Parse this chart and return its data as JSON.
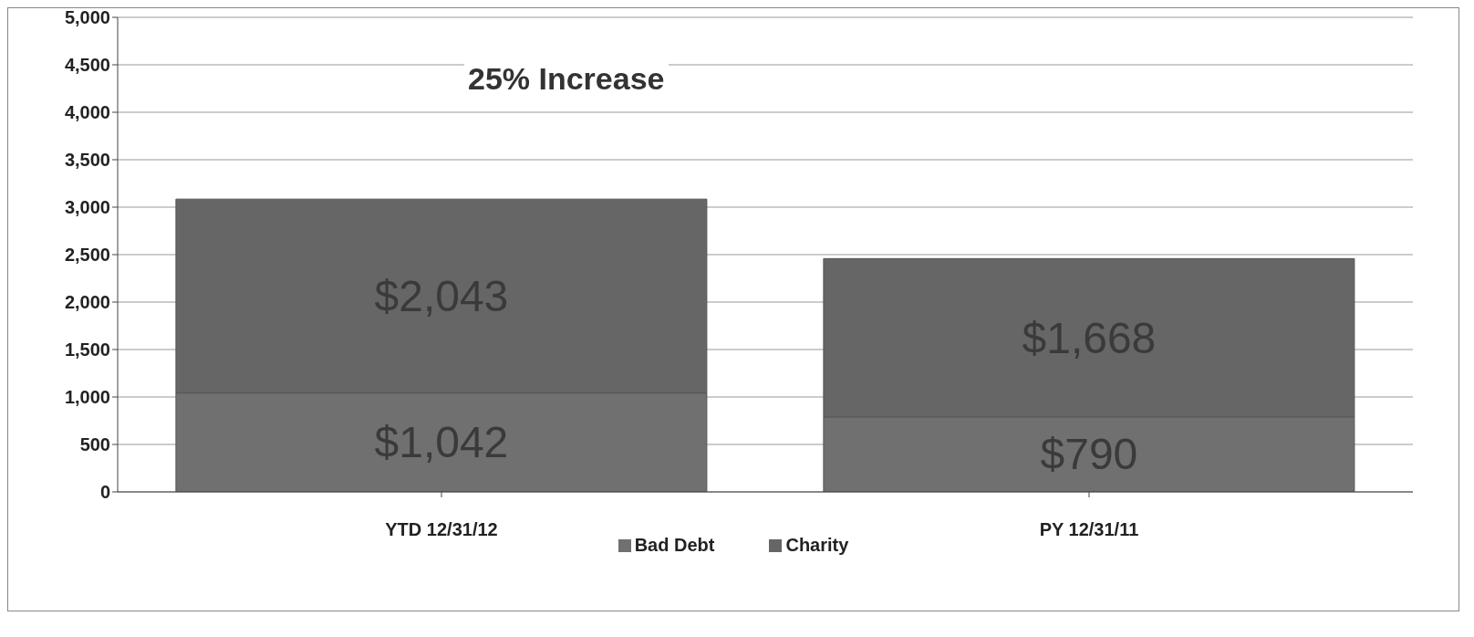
{
  "chart_data": {
    "type": "bar",
    "stacked": true,
    "categories": [
      "YTD 12/31/12",
      "PY 12/31/11"
    ],
    "series": [
      {
        "name": "Bad Debt",
        "color": "#707070",
        "values": [
          1042,
          790
        ],
        "value_labels": [
          "$1,042",
          "$790"
        ]
      },
      {
        "name": "Charity",
        "color": "#666666",
        "values": [
          2043,
          1668
        ],
        "value_labels": [
          "$2,043",
          "$1,668"
        ]
      }
    ],
    "ylim": [
      0,
      5000
    ],
    "yticks": [
      0,
      500,
      {
        "value": 1000,
        "label": "1,000"
      },
      {
        "value": 1500,
        "label": "1,500"
      },
      {
        "value": 2000,
        "label": "2,000"
      },
      {
        "value": 2500,
        "label": "2,500"
      },
      {
        "value": 3000,
        "label": "3,000"
      },
      {
        "value": 3500,
        "label": "3,500"
      },
      {
        "value": 4000,
        "label": "4,000"
      },
      {
        "value": 4500,
        "label": "4,500"
      },
      {
        "value": 5000,
        "label": "5,000"
      }
    ],
    "grid": "y",
    "legend": "bottom",
    "annotations": [
      "25% Increase"
    ]
  }
}
